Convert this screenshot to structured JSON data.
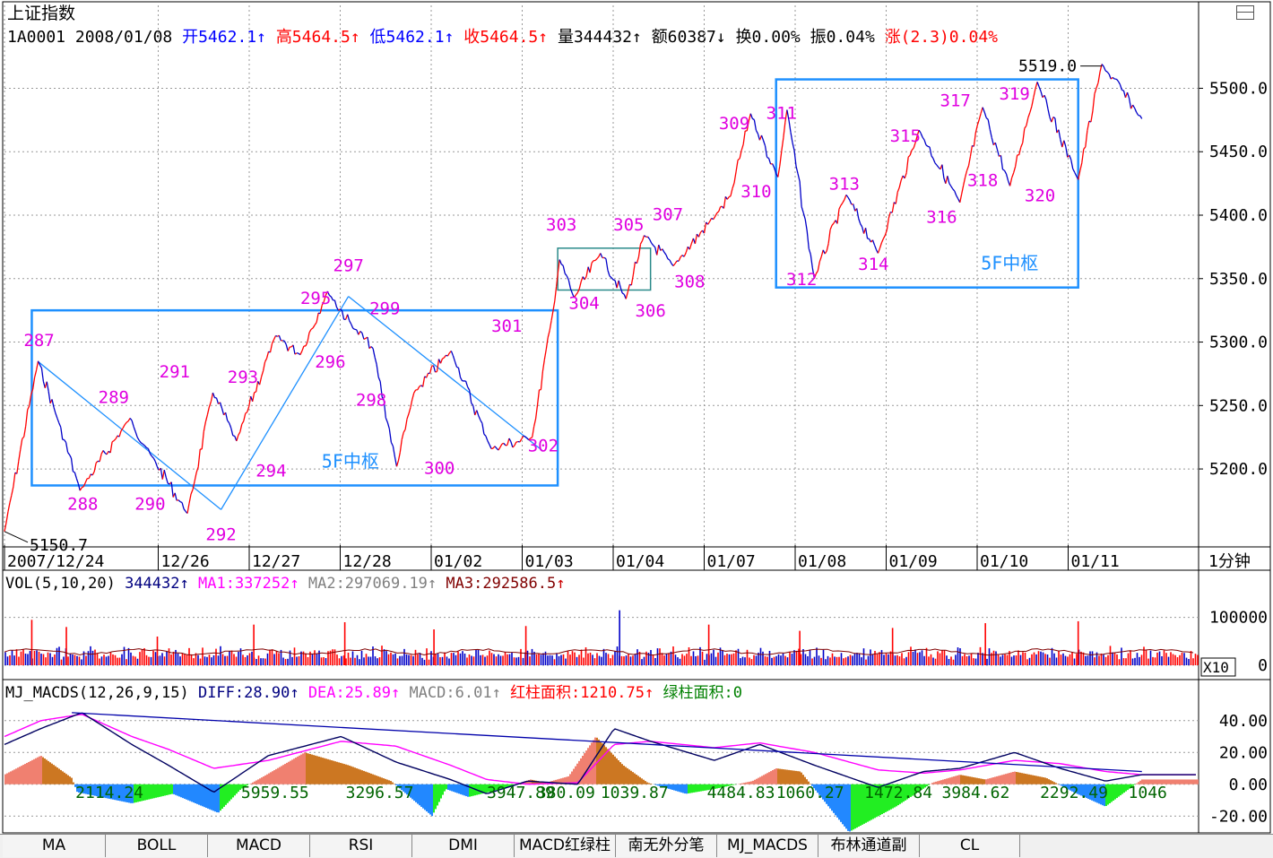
{
  "header": {
    "title": "上证指数",
    "code": "1A0001",
    "date": "2008/01/08",
    "open": "开5462.1",
    "high": "高5464.5",
    "low": "低5462.1",
    "close": "收5464.5",
    "volume": "量344432",
    "amount": "额60387",
    "turnover": "换0.00%",
    "amplitude": "振0.04%",
    "change": "涨(2.3)0.04%",
    "up_arrow": "↑",
    "down_arrow": "↓"
  },
  "period": "1分钟",
  "colors": {
    "up": "#ff0000",
    "down": "#0000c8",
    "label": "#e000e0",
    "box": "#1e90ff",
    "ma1": "#ff00ff",
    "ma2": "#808080",
    "ma3": "#800000",
    "macd_red": "#f08070",
    "macd_brown": "#cc7722",
    "macd_green": "#22ee22",
    "macd_blue": "#2288ff"
  },
  "vol_header": {
    "name": "VOL(5,10,20)",
    "value": "344432",
    "ma1": "MA1:337252",
    "ma2": "MA2:297069.19",
    "ma3": "MA3:292586.5"
  },
  "vol_scale": "X10",
  "macd_header": {
    "name": "MJ_MACDS(12,26,9,15)",
    "diff": "DIFF:28.90",
    "dea": "DEA:25.89",
    "macd": "MACD:6.01",
    "red_area": "红柱面积:1210.75",
    "green_area": "绿柱面积:0"
  },
  "tabs": [
    "MA",
    "BOLL",
    "MACD",
    "RSI",
    "DMI",
    "MACD红绿柱",
    "南无外分笔",
    "MJ_MACDS",
    "布林通道副",
    "CL"
  ],
  "chart_data": [
    {
      "type": "line",
      "panel": "price",
      "x_ticks": [
        "2007/12/24",
        "12/26",
        "12/27",
        "12/28",
        "01/02",
        "01/03",
        "01/04",
        "01/07",
        "01/08",
        "01/09",
        "01/10",
        "01/11"
      ],
      "y_ticks": [
        "5500.0",
        "5450.0",
        "5400.0",
        "5350.0",
        "5300.0",
        "5250.0",
        "5200.0"
      ],
      "ylim": [
        5140,
        5530
      ],
      "max_label": "5519.0",
      "min_label": "5150.7",
      "series": [
        {
          "x": [
            0,
            0.37,
            0.58,
            0.83,
            1.38,
            1.6,
            2.01,
            2.29,
            2.55,
            2.98,
            3.25,
            3.55,
            3.85,
            4.05,
            4.31,
            4.5,
            4.91,
            5.35,
            5.8,
            6.03,
            6.1,
            6.26,
            6.55,
            6.83,
            7.03,
            7.35,
            7.85,
            7.98,
            8.2,
            8.5,
            8.6,
            8.9,
            9.25,
            9.6,
            10.05,
            10.5,
            10.75,
            11.05,
            11.35,
            11.8,
            12.06,
            12.5
          ],
          "y": [
            5150.7,
            5285,
            5240,
            5183,
            5240,
            5212,
            5165,
            5260,
            5222,
            5305,
            5290,
            5340,
            5310,
            5295,
            5202,
            5260,
            5293,
            5216,
            5225,
            5325,
            5365,
            5335,
            5370,
            5334,
            5384,
            5360,
            5403,
            5415,
            5480,
            5430,
            5483,
            5350,
            5416,
            5370,
            5467,
            5410,
            5485,
            5423,
            5505,
            5428,
            5519,
            5476
          ]
        }
      ],
      "pivot_labels": [
        {
          "text": "287",
          "x": 0.38,
          "y": 5297
        },
        {
          "text": "288",
          "x": 0.86,
          "y": 5168
        },
        {
          "text": "289",
          "x": 1.2,
          "y": 5252
        },
        {
          "text": "290",
          "x": 1.6,
          "y": 5168
        },
        {
          "text": "291",
          "x": 1.87,
          "y": 5272
        },
        {
          "text": "292",
          "x": 2.38,
          "y": 5144
        },
        {
          "text": "293",
          "x": 2.62,
          "y": 5268
        },
        {
          "text": "294",
          "x": 2.93,
          "y": 5194
        },
        {
          "text": "295",
          "x": 3.42,
          "y": 5330
        },
        {
          "text": "296",
          "x": 3.58,
          "y": 5280
        },
        {
          "text": "297",
          "x": 3.78,
          "y": 5356
        },
        {
          "text": "298",
          "x": 4.03,
          "y": 5250
        },
        {
          "text": "299",
          "x": 4.18,
          "y": 5322
        },
        {
          "text": "300",
          "x": 4.78,
          "y": 5196
        },
        {
          "text": "301",
          "x": 5.52,
          "y": 5308
        },
        {
          "text": "302",
          "x": 5.92,
          "y": 5214
        },
        {
          "text": "303",
          "x": 6.12,
          "y": 5388
        },
        {
          "text": "304",
          "x": 6.37,
          "y": 5326
        },
        {
          "text": "305",
          "x": 6.86,
          "y": 5388
        },
        {
          "text": "306",
          "x": 7.1,
          "y": 5320
        },
        {
          "text": "307",
          "x": 7.29,
          "y": 5396
        },
        {
          "text": "308",
          "x": 7.53,
          "y": 5343
        },
        {
          "text": "309",
          "x": 8.02,
          "y": 5468
        },
        {
          "text": "310",
          "x": 8.26,
          "y": 5414
        },
        {
          "text": "311",
          "x": 8.54,
          "y": 5476
        },
        {
          "text": "312",
          "x": 8.76,
          "y": 5345
        },
        {
          "text": "313",
          "x": 9.23,
          "y": 5420
        },
        {
          "text": "314",
          "x": 9.55,
          "y": 5357
        },
        {
          "text": "315",
          "x": 9.9,
          "y": 5458
        },
        {
          "text": "316",
          "x": 10.3,
          "y": 5394
        },
        {
          "text": "317",
          "x": 10.45,
          "y": 5486
        },
        {
          "text": "318",
          "x": 10.75,
          "y": 5423
        },
        {
          "text": "319",
          "x": 11.1,
          "y": 5491
        },
        {
          "text": "320",
          "x": 11.38,
          "y": 5411
        }
      ],
      "annotations": [
        "5F中枢",
        "5F中枢"
      ],
      "zones": [
        {
          "label": "5F中枢",
          "x": [
            0.3,
            6.08
          ],
          "y": [
            5187,
            5325
          ]
        },
        {
          "label": "",
          "x": [
            6.08,
            7.1
          ],
          "y": [
            5341,
            5374
          ]
        },
        {
          "label": "5F中枢",
          "x": [
            8.48,
            11.8
          ],
          "y": [
            5343,
            5507
          ]
        }
      ],
      "trend_lines": [
        {
          "x": [
            0.38,
            2.38
          ],
          "y": [
            5284,
            5168
          ]
        },
        {
          "x": [
            2.38,
            3.78
          ],
          "y": [
            5168,
            5336
          ]
        },
        {
          "x": [
            3.78,
            5.92
          ],
          "y": [
            5336,
            5214
          ]
        }
      ]
    },
    {
      "type": "bar",
      "panel": "volume",
      "y_ticks": [
        "100000",
        "0"
      ],
      "ylim": [
        0,
        150000
      ],
      "spikes": [
        {
          "x": 0.3,
          "value": 95000
        },
        {
          "x": 0.68,
          "value": 80000
        },
        {
          "x": 1.68,
          "value": 60000
        },
        {
          "x": 2.74,
          "value": 85000
        },
        {
          "x": 3.74,
          "value": 90000
        },
        {
          "x": 4.72,
          "value": 75000
        },
        {
          "x": 5.73,
          "value": 82000
        },
        {
          "x": 6.76,
          "value": 115000
        },
        {
          "x": 7.74,
          "value": 85000
        },
        {
          "x": 8.74,
          "value": 72000
        },
        {
          "x": 9.76,
          "value": 78000
        },
        {
          "x": 10.78,
          "value": 88000
        },
        {
          "x": 11.8,
          "value": 92000
        }
      ]
    },
    {
      "type": "area",
      "panel": "macd",
      "y_ticks": [
        "40.00",
        "20.00",
        "0.00",
        "-20.00"
      ],
      "ylim": [
        -30,
        50
      ],
      "area_labels": [
        "2114.24",
        "5959.55",
        "3296.57",
        "3947.89",
        "380.09",
        "1039.87",
        "4484.83",
        "1060.27",
        "1472.84",
        "3984.62",
        "2292.49",
        "1046"
      ],
      "hist": {
        "x": [
          0,
          0.4,
          0.74,
          0.8,
          1.4,
          1.85,
          2.35,
          2.6,
          2.85,
          3.3,
          3.78,
          4.25,
          4.7,
          4.85,
          5.1,
          5.53,
          5.78,
          5.95,
          6.2,
          6.5,
          6.8,
          7.07,
          7.49,
          7.8,
          8.22,
          8.48,
          8.75,
          9.28,
          9.8,
          10.2,
          10.5,
          10.78,
          11.1,
          11.45,
          11.75,
          12.1,
          12.5
        ],
        "y": [
          6,
          18,
          4,
          -5,
          -12,
          -6,
          -18,
          -3,
          5,
          20,
          12,
          2,
          -20,
          -3,
          -8,
          -2,
          3,
          1,
          5,
          30,
          12,
          1,
          -6,
          -3,
          2,
          10,
          8,
          -30,
          -14,
          1,
          6,
          3,
          8,
          4,
          -5,
          -14,
          3
        ]
      },
      "diff": {
        "x": [
          0,
          0.4,
          0.85,
          1.4,
          1.8,
          2.3,
          2.9,
          3.7,
          4.3,
          4.9,
          5.3,
          5.75,
          6.3,
          6.7,
          7.1,
          7.8,
          8.3,
          8.9,
          9.6,
          10.1,
          10.5,
          11.1,
          11.6,
          12.1,
          12.5
        ],
        "y": [
          25,
          35,
          45,
          25,
          12,
          -5,
          18,
          30,
          14,
          3,
          -6,
          2,
          0,
          35,
          27,
          15,
          25,
          12,
          -2,
          8,
          10,
          20,
          10,
          2,
          6
        ]
      },
      "dea": {
        "x": [
          0,
          0.4,
          0.85,
          1.4,
          1.8,
          2.3,
          2.9,
          3.7,
          4.3,
          4.9,
          5.3,
          5.75,
          6.3,
          6.7,
          7.1,
          7.8,
          8.3,
          8.9,
          9.6,
          10.1,
          10.5,
          11.1,
          11.6,
          12.1,
          12.5
        ],
        "y": [
          30,
          40,
          44,
          30,
          22,
          10,
          15,
          27,
          24,
          12,
          3,
          0,
          1,
          25,
          27,
          23,
          26,
          20,
          9,
          7,
          9,
          15,
          13,
          8,
          6
        ]
      },
      "trend_line": {
        "x": [
          0.74,
          12.5
        ],
        "y": [
          45,
          8
        ]
      }
    }
  ]
}
